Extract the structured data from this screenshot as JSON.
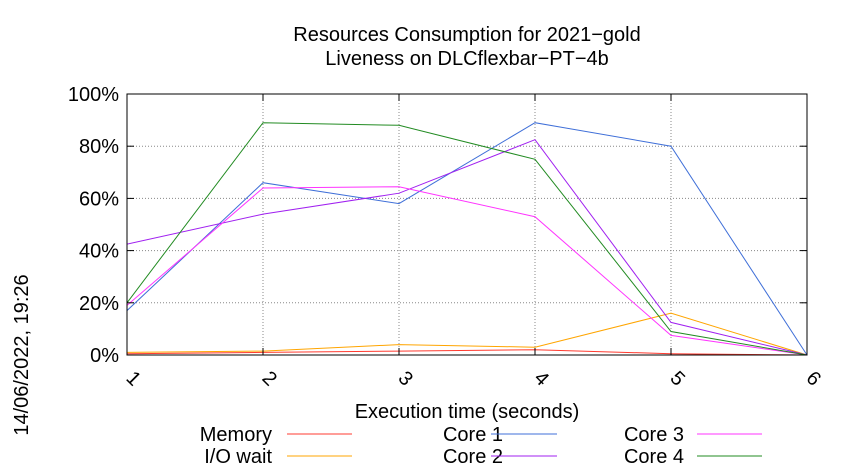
{
  "chart_data": {
    "type": "line",
    "title": [
      "Resources Consumption for 2021−gold",
      "Liveness on DLCflexbar−PT−4b"
    ],
    "xlabel": "Execution time (seconds)",
    "ylabel": "",
    "side_label": "14/06/2022, 19:26",
    "x": [
      1,
      2,
      3,
      4,
      5,
      6
    ],
    "xlim": [
      1,
      6
    ],
    "ylim": [
      0,
      100
    ],
    "y_ticks": [
      0,
      20,
      40,
      60,
      80,
      100
    ],
    "y_tick_suffix": "%",
    "grid": true,
    "legend_placement": "bottom",
    "series": [
      {
        "name": "Memory",
        "color": "#ff3b30",
        "values": [
          0.5,
          1,
          1.5,
          2,
          0.5,
          0
        ]
      },
      {
        "name": "I/O wait",
        "color": "#ffa500",
        "values": [
          1,
          1.5,
          4,
          3,
          16,
          0
        ]
      },
      {
        "name": "Core 1",
        "color": "#3f6fd8",
        "values": [
          17,
          66,
          58,
          89,
          80,
          0
        ]
      },
      {
        "name": "Core 2",
        "color": "#a020f0",
        "values": [
          42.5,
          54,
          62,
          82.5,
          12.5,
          0
        ]
      },
      {
        "name": "Core 3",
        "color": "#ff33ff",
        "values": [
          19,
          64,
          64.5,
          53,
          7.5,
          0
        ]
      },
      {
        "name": "Core 4",
        "color": "#228b22",
        "values": [
          20,
          89,
          88,
          75,
          9,
          0
        ]
      }
    ]
  }
}
